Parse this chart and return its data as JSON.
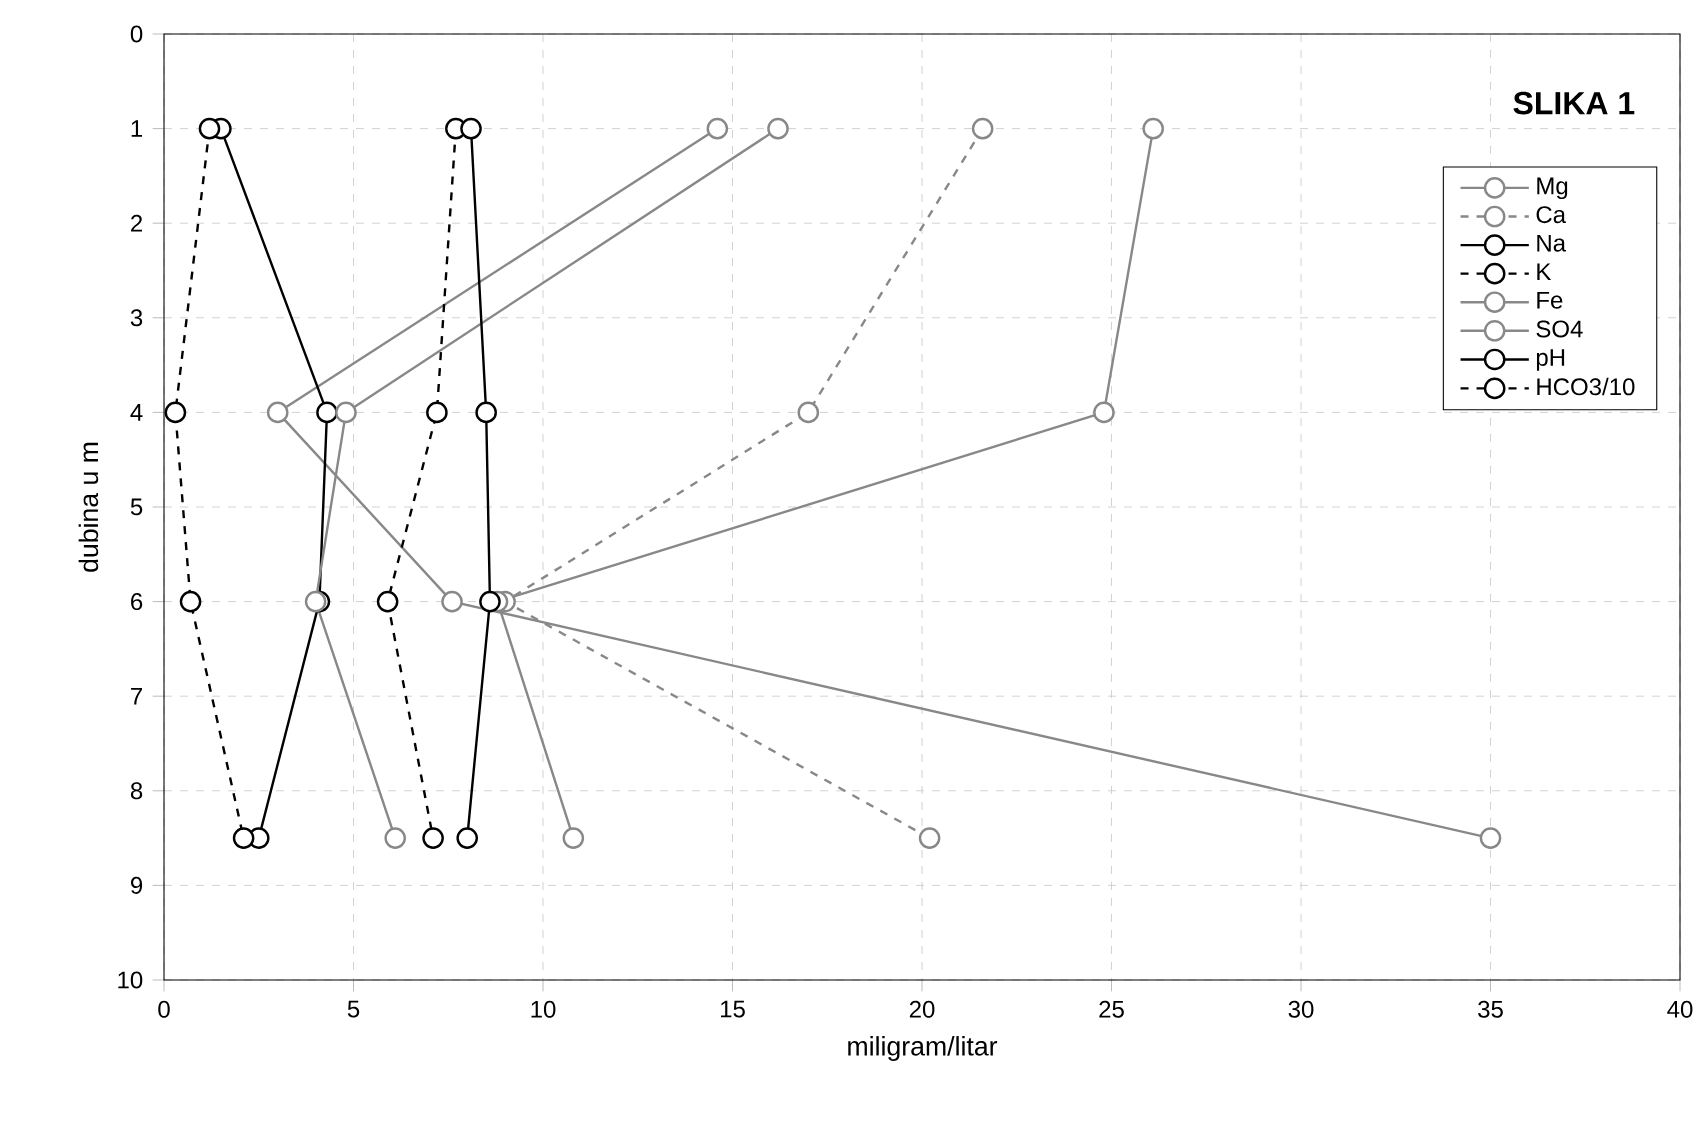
{
  "chart_data": {
    "type": "line",
    "title": "SLIKA 1",
    "xlabel": "miligram/litar",
    "ylabel": "dubina u m",
    "x": [
      1,
      4,
      6,
      8.5
    ],
    "orientation": "horizontal",
    "series": [
      {
        "name": "Mg",
        "color": "#888888",
        "values": [
          14.6,
          3.0,
          7.6,
          35.0
        ]
      },
      {
        "name": "Ca",
        "color": "#888888",
        "line_style": "dashed",
        "values": [
          21.6,
          17.0,
          9.0,
          20.2
        ]
      },
      {
        "name": "Na",
        "color": "#000000",
        "values": [
          1.5,
          4.3,
          4.1,
          2.5
        ]
      },
      {
        "name": "K",
        "color": "#000000",
        "line_style": "dashed",
        "values": [
          7.7,
          7.2,
          5.9,
          7.1
        ]
      },
      {
        "name": "Fe",
        "color": "#888888",
        "values": [
          16.2,
          4.8,
          4.0,
          6.1
        ]
      },
      {
        "name": "SO4",
        "color": "#888888",
        "values": [
          26.1,
          24.8,
          8.8,
          10.8
        ]
      },
      {
        "name": "pH",
        "color": "#000000",
        "values": [
          8.1,
          8.5,
          8.6,
          8.0
        ]
      },
      {
        "name": "HCO3/10",
        "color": "#000000",
        "line_style": "dashed",
        "values": [
          1.2,
          0.3,
          0.7,
          2.1
        ]
      }
    ],
    "xlim": [
      0,
      40
    ],
    "xticks": [
      0,
      5,
      10,
      15,
      20,
      25,
      30,
      35,
      40
    ],
    "ylim": [
      10,
      0
    ],
    "yticks": [
      0,
      1,
      2,
      3,
      4,
      5,
      6,
      7,
      8,
      9,
      10
    ],
    "grid": true,
    "legend": "top right",
    "marker": "circle",
    "line_style": "solid"
  }
}
